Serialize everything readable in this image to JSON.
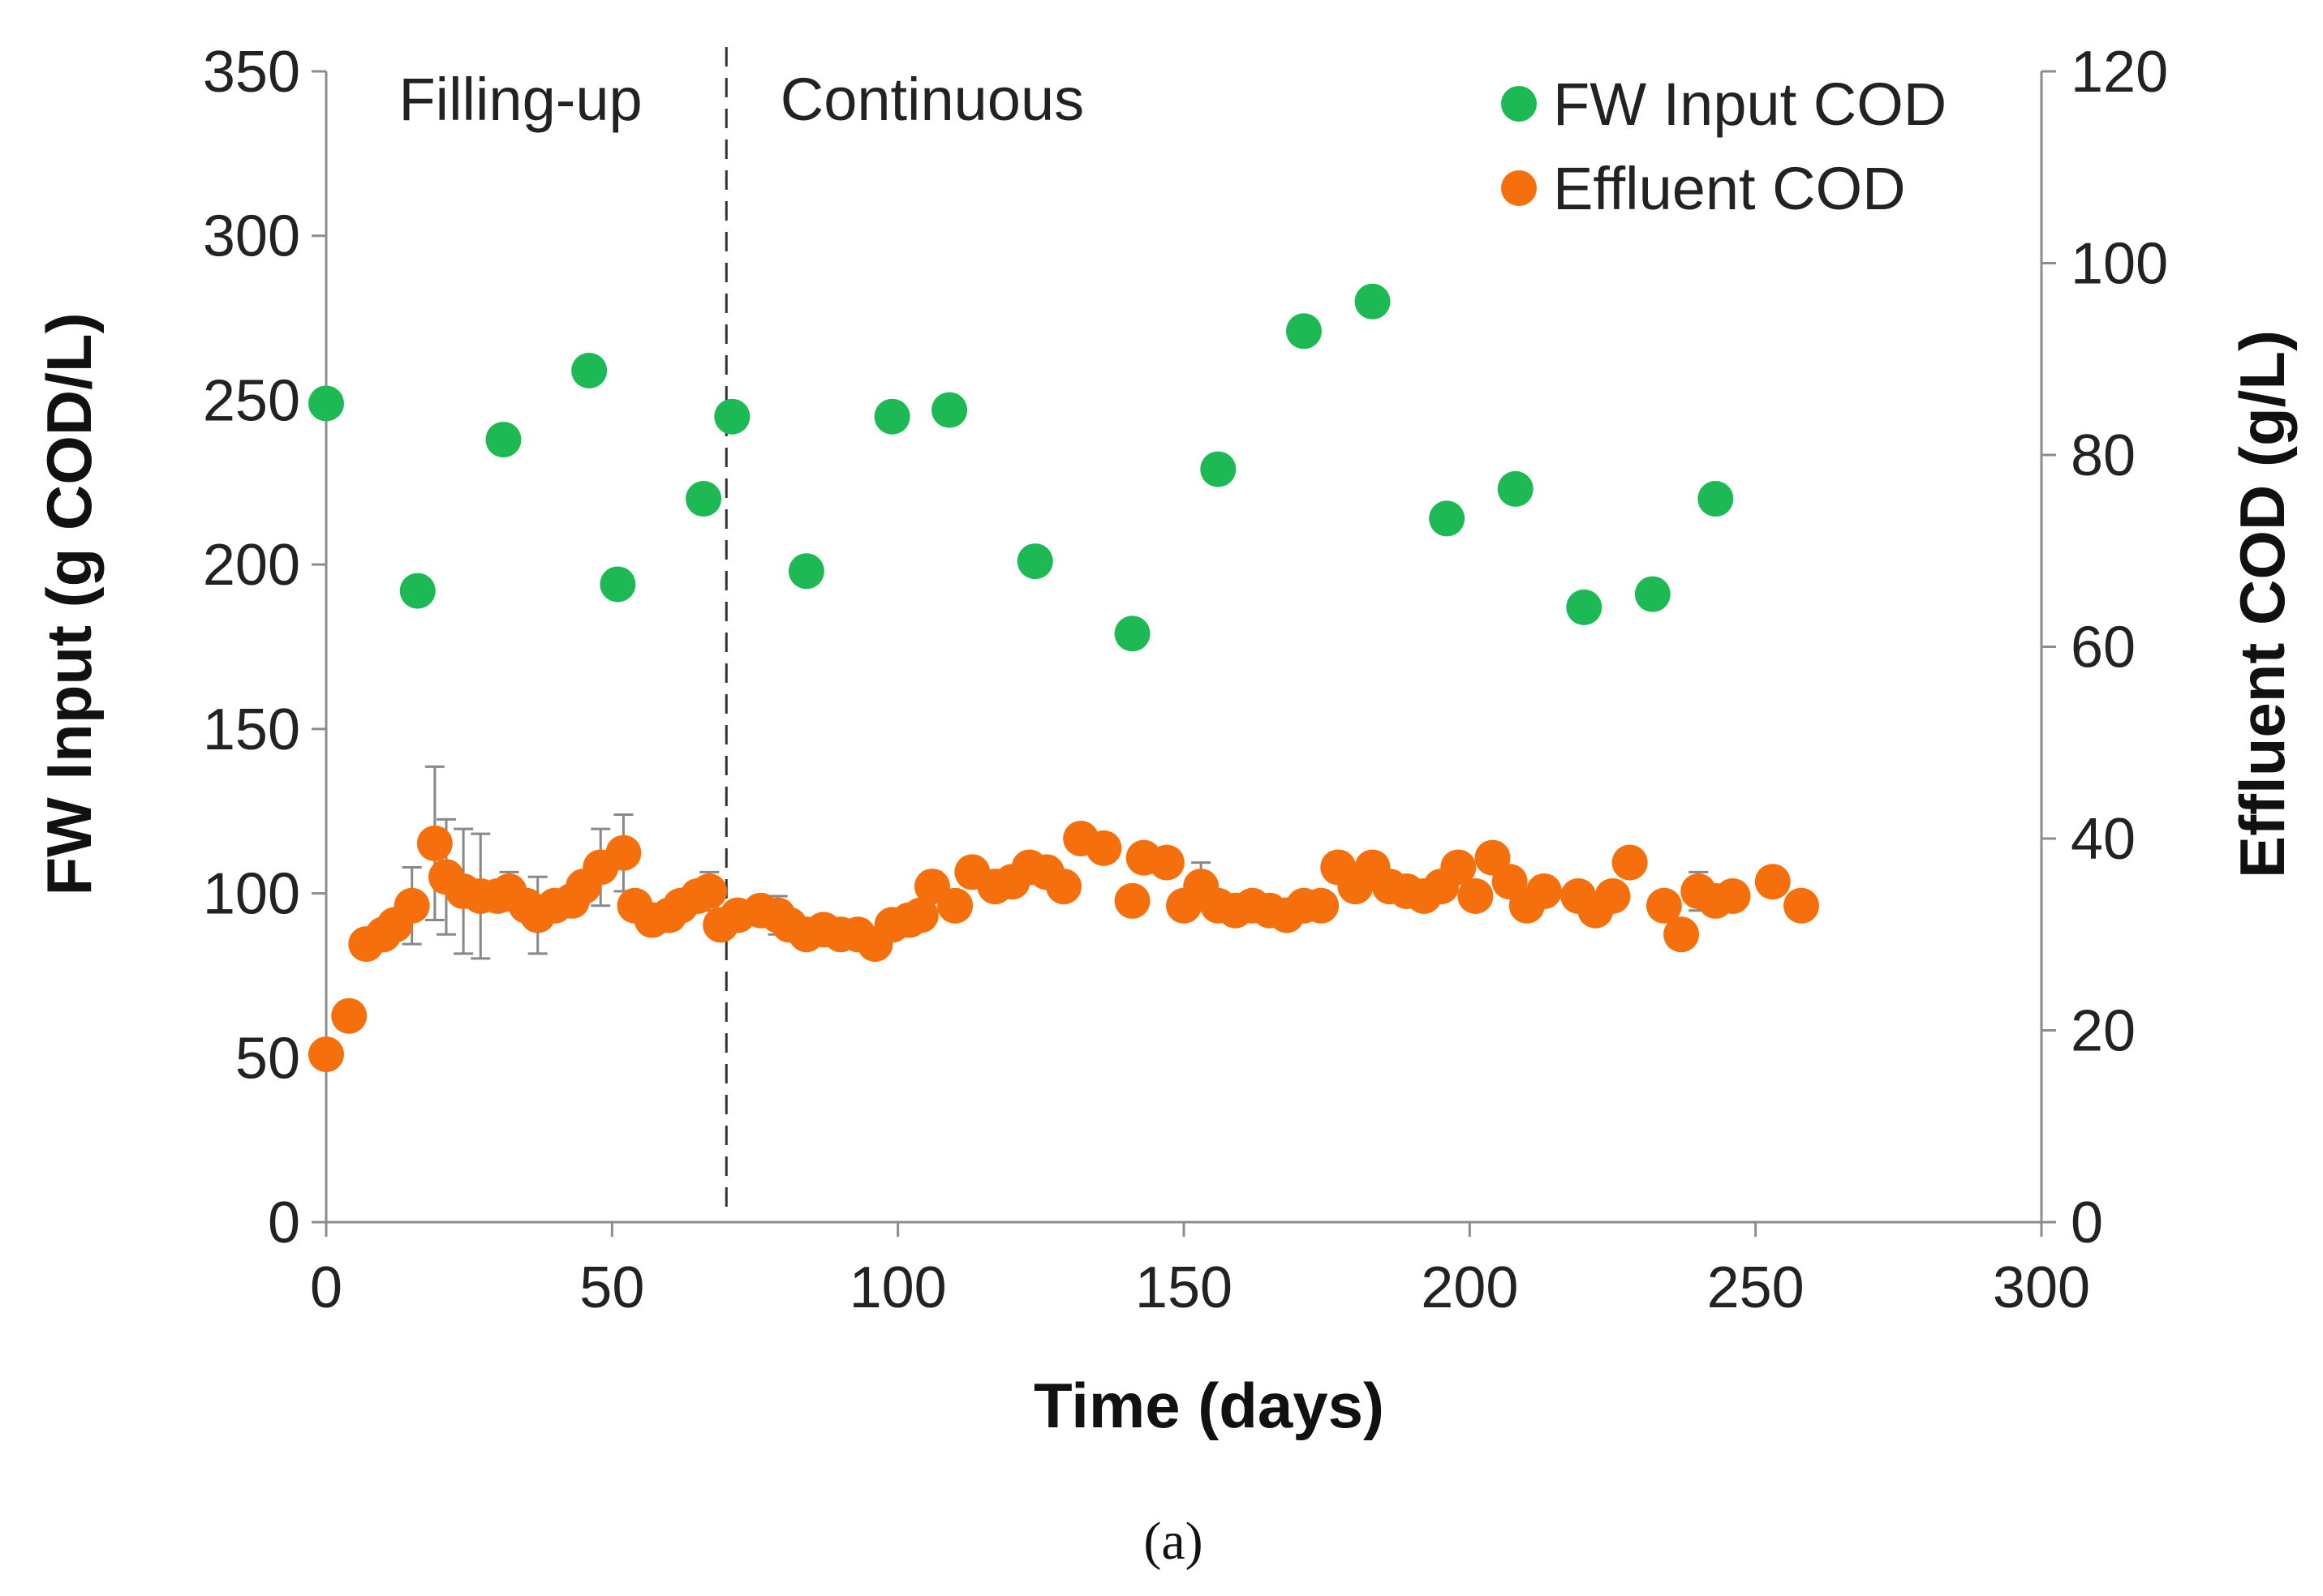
{
  "chart_data": {
    "type": "scatter",
    "title": "",
    "xlabel": "Time (days)",
    "ylabel": "FW Input (g COD/L)",
    "y2label": "Effluent COD (g/L)",
    "xlim": [
      0,
      300
    ],
    "ylim": [
      0,
      350
    ],
    "y2lim": [
      0,
      120
    ],
    "x_ticks": [
      0,
      50,
      100,
      150,
      200,
      250,
      300
    ],
    "y_ticks": [
      0,
      50,
      100,
      150,
      200,
      250,
      300,
      350
    ],
    "y2_ticks": [
      0,
      20,
      40,
      60,
      80,
      100,
      120
    ],
    "grid": false,
    "legend_position": "top-right",
    "phase_divider_x": 70,
    "phases": [
      {
        "label": "Filling-up",
        "x": 34
      },
      {
        "label": "Continuous",
        "x": 106
      }
    ],
    "caption": "(a)",
    "series": [
      {
        "name": "FW Input COD",
        "color": "#1db954",
        "axis": "left",
        "points": [
          [
            0,
            249
          ],
          [
            16,
            192
          ],
          [
            31,
            238
          ],
          [
            46,
            259
          ],
          [
            51,
            194
          ],
          [
            66,
            220
          ],
          [
            71,
            245
          ],
          [
            84,
            198
          ],
          [
            99,
            245
          ],
          [
            109,
            247
          ],
          [
            124,
            201
          ],
          [
            141,
            179
          ],
          [
            156,
            229
          ],
          [
            171,
            271
          ],
          [
            183,
            280
          ],
          [
            196,
            214
          ],
          [
            208,
            223
          ],
          [
            220,
            187
          ],
          [
            232,
            191
          ],
          [
            243,
            220
          ]
        ]
      },
      {
        "name": "Effluent COD",
        "color": "#f5700c",
        "axis": "right",
        "points": [
          [
            0,
            17.5,
            0
          ],
          [
            4,
            21.5,
            0
          ],
          [
            7,
            29,
            0
          ],
          [
            10,
            30,
            0
          ],
          [
            12,
            31,
            0
          ],
          [
            15,
            33,
            4
          ],
          [
            19,
            39.5,
            8
          ],
          [
            21,
            36,
            6
          ],
          [
            24,
            34.5,
            6.5
          ],
          [
            27,
            34,
            6.5
          ],
          [
            30,
            34,
            0
          ],
          [
            32,
            34.5,
            2
          ],
          [
            35,
            33,
            0
          ],
          [
            37,
            32,
            4
          ],
          [
            40,
            33,
            0
          ],
          [
            43,
            33.5,
            0
          ],
          [
            45,
            35,
            0
          ],
          [
            48,
            37,
            4
          ],
          [
            52,
            38.5,
            4
          ],
          [
            54,
            33,
            0
          ],
          [
            57,
            31.5,
            0
          ],
          [
            60,
            32,
            0
          ],
          [
            62,
            33,
            0
          ],
          [
            65,
            34,
            0
          ],
          [
            67,
            34.5,
            2
          ],
          [
            69,
            31,
            0
          ],
          [
            72,
            32,
            0
          ],
          [
            76,
            32.5,
            0
          ],
          [
            79,
            32,
            2
          ],
          [
            81,
            31,
            0
          ],
          [
            84,
            30,
            0
          ],
          [
            87,
            30.5,
            0
          ],
          [
            90,
            30,
            0
          ],
          [
            93,
            30,
            0
          ],
          [
            96,
            29,
            0
          ],
          [
            99,
            31,
            0
          ],
          [
            102,
            31.5,
            0
          ],
          [
            104,
            32,
            0
          ],
          [
            106,
            35,
            1.5
          ],
          [
            110,
            33,
            0
          ],
          [
            113,
            36.5,
            0
          ],
          [
            117,
            35,
            0
          ],
          [
            120,
            35.5,
            0
          ],
          [
            123,
            37,
            0
          ],
          [
            126,
            36.5,
            0
          ],
          [
            129,
            35,
            0
          ],
          [
            132,
            40,
            0
          ],
          [
            136,
            39,
            0
          ],
          [
            141,
            33.5,
            0
          ],
          [
            143,
            38,
            0
          ],
          [
            147,
            37.5,
            0
          ],
          [
            150,
            33,
            0
          ],
          [
            153,
            35,
            2.5
          ],
          [
            156,
            33,
            0
          ],
          [
            159,
            32.5,
            0
          ],
          [
            162,
            33,
            0
          ],
          [
            165,
            32.5,
            0
          ],
          [
            168,
            32,
            0
          ],
          [
            171,
            33,
            0
          ],
          [
            174,
            33,
            0
          ],
          [
            177,
            37,
            1.5
          ],
          [
            180,
            35,
            0
          ],
          [
            183,
            37,
            0
          ],
          [
            186,
            35,
            0
          ],
          [
            189,
            34.5,
            0
          ],
          [
            192,
            34,
            0
          ],
          [
            195,
            35,
            0
          ],
          [
            198,
            37,
            0
          ],
          [
            201,
            34,
            0
          ],
          [
            204,
            38,
            1.5
          ],
          [
            207,
            35.5,
            0
          ],
          [
            210,
            33,
            0
          ],
          [
            213,
            34.5,
            1.5
          ],
          [
            219,
            34,
            0
          ],
          [
            222,
            32.5,
            0
          ],
          [
            225,
            34,
            0
          ],
          [
            228,
            37.5,
            0
          ],
          [
            234,
            33,
            0
          ],
          [
            237,
            30,
            0
          ],
          [
            240,
            34.5,
            2
          ],
          [
            243,
            33.5,
            0
          ],
          [
            246,
            34,
            0
          ],
          [
            253,
            35.5,
            0
          ],
          [
            258,
            33,
            0
          ]
        ]
      }
    ]
  }
}
